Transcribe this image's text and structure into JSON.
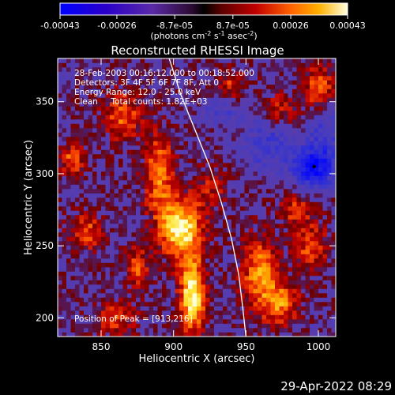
{
  "chart_data": {
    "type": "heatmap",
    "title": "Reconstructed RHESSI Image",
    "xlabel": "Heliocentric X (arcsec)",
    "ylabel": "Heliocentric Y (arcsec)",
    "xlim": [
      820,
      1012
    ],
    "ylim": [
      187,
      380
    ],
    "x_ticks": [
      850,
      900,
      950,
      1000
    ],
    "y_ticks": [
      200,
      250,
      300,
      350
    ],
    "colorbar": {
      "label_main": "(photons cm",
      "label_exp1": "-2",
      "label_mid": " s",
      "label_exp2": "-1",
      "label_end": " asec",
      "label_exp3": "-2",
      "label_close": ")",
      "range": [
        -0.00043,
        0.00043
      ],
      "tick_labels": [
        "-0.00043",
        "-0.00026",
        "-8.7e-05",
        "8.7e-05",
        "0.00026",
        "0.00043"
      ],
      "tick_values": [
        -0.00043,
        -0.00026,
        -8.7e-05,
        8.7e-05,
        0.00026,
        0.00043
      ]
    },
    "annotations": {
      "time_range": "28-Feb-2003 00:16:12.000 to 00:18:52.000",
      "detectors": "Detectors: 3F 4F 5F 6F 7F 8F, Att 0",
      "energy": "Energy Range: 12.0 - 25.0 keV",
      "clean": "Clean     Total counts: 1.82E+03",
      "peak": "Position of Peak = [913,216]"
    },
    "peak_position": [
      913,
      216
    ],
    "limb_curve": [
      [
        897,
        380
      ],
      [
        905,
        355
      ],
      [
        915,
        330
      ],
      [
        925,
        305
      ],
      [
        933,
        280
      ],
      [
        940,
        255
      ],
      [
        945,
        230
      ],
      [
        948,
        205
      ],
      [
        950,
        187
      ]
    ],
    "hot_spots": [
      {
        "x": 913,
        "y": 216,
        "intensity": 1.0,
        "sx": 6,
        "sy": 18
      },
      {
        "x": 905,
        "y": 262,
        "intensity": 0.95,
        "sx": 10,
        "sy": 14
      },
      {
        "x": 890,
        "y": 300,
        "intensity": 0.6,
        "sx": 7,
        "sy": 20
      },
      {
        "x": 865,
        "y": 340,
        "intensity": 0.5,
        "sx": 9,
        "sy": 12
      },
      {
        "x": 960,
        "y": 230,
        "intensity": 0.65,
        "sx": 9,
        "sy": 18
      },
      {
        "x": 975,
        "y": 210,
        "intensity": 0.55,
        "sx": 8,
        "sy": 10
      },
      {
        "x": 995,
        "y": 250,
        "intensity": 0.5,
        "sx": 8,
        "sy": 10
      },
      {
        "x": 1000,
        "y": 360,
        "intensity": 0.55,
        "sx": 7,
        "sy": 10
      },
      {
        "x": 830,
        "y": 310,
        "intensity": 0.5,
        "sx": 6,
        "sy": 8
      },
      {
        "x": 840,
        "y": 260,
        "intensity": 0.45,
        "sx": 8,
        "sy": 9
      },
      {
        "x": 860,
        "y": 200,
        "intensity": 0.4,
        "sx": 10,
        "sy": 8
      },
      {
        "x": 875,
        "y": 235,
        "intensity": 0.45,
        "sx": 6,
        "sy": 10
      },
      {
        "x": 940,
        "y": 360,
        "intensity": 0.4,
        "sx": 7,
        "sy": 8
      },
      {
        "x": 975,
        "y": 345,
        "intensity": 0.35,
        "sx": 8,
        "sy": 8
      },
      {
        "x": 985,
        "y": 275,
        "intensity": 0.4,
        "sx": 8,
        "sy": 8
      },
      {
        "x": 925,
        "y": 290,
        "intensity": 0.3,
        "sx": 8,
        "sy": 10
      }
    ],
    "cold_spots": [
      {
        "x": 997,
        "y": 305,
        "intensity": -0.9,
        "sx": 10,
        "sy": 10
      },
      {
        "x": 965,
        "y": 320,
        "intensity": -0.4,
        "sx": 12,
        "sy": 12
      },
      {
        "x": 1005,
        "y": 330,
        "intensity": -0.35,
        "sx": 8,
        "sy": 12
      },
      {
        "x": 935,
        "y": 345,
        "intensity": -0.3,
        "sx": 10,
        "sy": 8
      }
    ]
  },
  "timestamp": "29-Apr-2022 08:29"
}
